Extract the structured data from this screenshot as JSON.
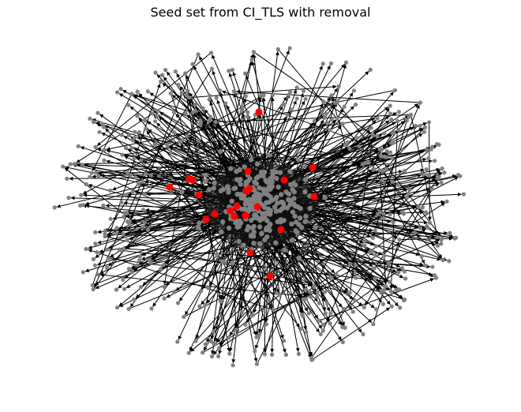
{
  "title": "Seed set from CI_TLS with removal",
  "colors": {
    "background": "#ffffff",
    "edge": "#000000",
    "node": "#808080",
    "seed_node": "#ff0000"
  },
  "graph": {
    "type": "directed network",
    "layout": "force-directed, dense central core with radial edges to periphery",
    "node_counts": {
      "approximate_total": 700,
      "highlighted_seeds": 23
    }
  }
}
